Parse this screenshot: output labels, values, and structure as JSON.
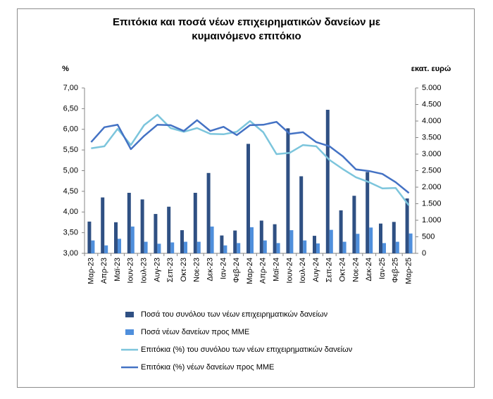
{
  "chart_data": {
    "type": "combo",
    "title": "Επιτόκια και ποσά νέων επιχειρηματικών δανείων με κυμαινόμενο επιτόκιο",
    "y_label": "%",
    "y2_label": "εκατ. ευρώ",
    "categories": [
      "Μαρ-23",
      "Απρ-23",
      "Μαϊ-23",
      "Ιουν-23",
      "Ιουλ-23",
      "Αυγ-23",
      "Σεπ-23",
      "Οκτ-23",
      "Νοε-23",
      "Δεκ-23",
      "Ιαν-24",
      "Φεβ-24",
      "Μαρ-24",
      "Απρ-24",
      "Μαϊ-24",
      "Ιουν-24",
      "Ιουλ-24",
      "Αυγ-24",
      "Σεπ-24",
      "Οκτ-24",
      "Νοε-24",
      "Δεκ-24",
      "Ιαν-25",
      "Φεβ-25",
      "Μαρ-25"
    ],
    "ylim": [
      3,
      7
    ],
    "yticks": [
      {
        "value": 3,
        "label": "3,00"
      },
      {
        "value": 3.5,
        "label": "3,50"
      },
      {
        "value": 4,
        "label": "4,00"
      },
      {
        "value": 4.5,
        "label": "4,50"
      },
      {
        "value": 5,
        "label": "5,00"
      },
      {
        "value": 5.5,
        "label": "5,50"
      },
      {
        "value": 6,
        "label": "6,00"
      },
      {
        "value": 6.5,
        "label": "6,50"
      },
      {
        "value": 7,
        "label": "7,00"
      }
    ],
    "y2lim": [
      0,
      5000
    ],
    "y2ticks": [
      0,
      {
        "value": 500,
        "label": "500"
      },
      {
        "value": 1000,
        "label": "1.000"
      },
      {
        "value": 1500,
        "label": "1.500"
      },
      {
        "value": 2000,
        "label": "2.000"
      },
      {
        "value": 2500,
        "label": "2.500"
      },
      {
        "value": 3000,
        "label": "3.000"
      },
      {
        "value": 3500,
        "label": "3.500"
      },
      {
        "value": 4000,
        "label": "4.000"
      },
      {
        "value": 4500,
        "label": "4.500"
      },
      {
        "value": 5000,
        "label": "5.000"
      }
    ],
    "grid": false,
    "series": [
      {
        "name": "Ποσά του συνόλου των νέων επιχειρηματικών δανείων",
        "type": "bar",
        "axis": "y2",
        "color": "#2f5083",
        "values": [
          960,
          1690,
          940,
          1830,
          1630,
          1190,
          1410,
          700,
          1830,
          2430,
          540,
          690,
          3310,
          990,
          880,
          3780,
          2330,
          530,
          4340,
          1300,
          1740,
          2460,
          900,
          950,
          1660
        ]
      },
      {
        "name": "Ποσά νέων δανείων προς ΜΜΕ",
        "type": "bar",
        "axis": "y2",
        "color": "#4f8fdc",
        "values": [
          390,
          240,
          440,
          810,
          350,
          290,
          330,
          350,
          350,
          810,
          240,
          310,
          790,
          390,
          310,
          700,
          390,
          300,
          710,
          350,
          590,
          780,
          310,
          350,
          600
        ]
      },
      {
        "name": "Επιτόκια (%) του συνόλου των νέων επιχειρηματικών δανείων",
        "type": "line",
        "color": "#7cc5dc",
        "values": [
          5.54,
          5.59,
          6.01,
          5.62,
          6.1,
          6.35,
          6.03,
          5.94,
          6.03,
          5.89,
          5.88,
          5.94,
          6.2,
          5.93,
          5.4,
          5.43,
          5.62,
          5.59,
          5.26,
          5.04,
          4.84,
          4.72,
          4.57,
          4.58,
          4.16
        ]
      },
      {
        "name": "Επιτόκια (%) νέων δανείων προς ΜΜΕ",
        "type": "line",
        "color": "#4472c4",
        "values": [
          5.69,
          6.05,
          6.11,
          5.52,
          5.84,
          6.11,
          6.1,
          5.96,
          6.22,
          5.96,
          6.06,
          5.86,
          6.1,
          6.11,
          6.18,
          5.89,
          5.93,
          5.69,
          5.59,
          5.35,
          5.03,
          4.99,
          4.92,
          4.72,
          4.46
        ]
      }
    ]
  }
}
